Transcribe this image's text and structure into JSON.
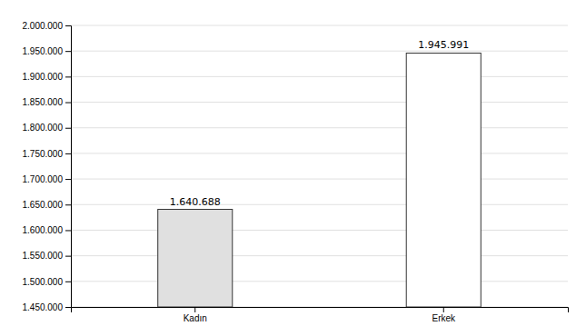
{
  "chart_data": {
    "type": "bar",
    "categories": [
      "Kadın",
      "Erkek"
    ],
    "values": [
      1640688,
      1945991
    ],
    "value_labels": [
      "1.640.688",
      "1.945.991"
    ],
    "data_labels": true,
    "colors": [
      "#e0e0e0",
      "#ffffff"
    ],
    "ylim": [
      1450000,
      2000000
    ],
    "yticks": [
      {
        "value": 1450000,
        "label": "1.450.000"
      },
      {
        "value": 1500000,
        "label": "1.500.000"
      },
      {
        "value": 1550000,
        "label": "1.550.000"
      },
      {
        "value": 1600000,
        "label": "1.600.000"
      },
      {
        "value": 1650000,
        "label": "1.650.000"
      },
      {
        "value": 1700000,
        "label": "1.700.000"
      },
      {
        "value": 1750000,
        "label": "1.750.000"
      },
      {
        "value": 1800000,
        "label": "1.800.000"
      },
      {
        "value": 1850000,
        "label": "1.850.000"
      },
      {
        "value": 1900000,
        "label": "1.900.000"
      },
      {
        "value": 1950000,
        "label": "1.950.000"
      },
      {
        "value": 2000000,
        "label": "2.000.000"
      }
    ],
    "grid": true
  }
}
